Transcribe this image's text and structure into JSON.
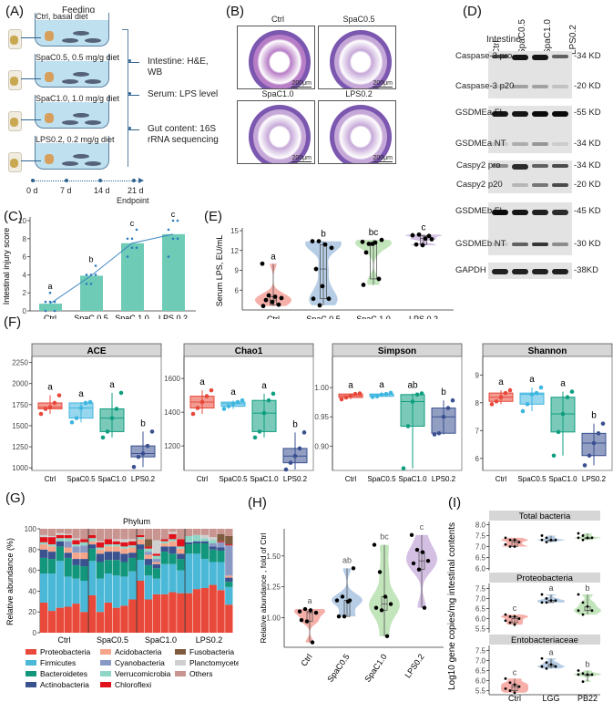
{
  "panels": {
    "A": {
      "label": "(A)",
      "title": "Feeding",
      "groups": [
        "Ctrl, basal diet",
        "SpaC0.5, 0.5 mg/g diet",
        "SpaC1.0, 1.0 mg/g diet",
        "LPS0.2, 0.2 mg/g diet"
      ],
      "outputs": [
        "Intestine: H&E, WB",
        "Serum: LPS level",
        "Gut content: 16S rRNA sequencing"
      ],
      "timeline": [
        "0 d",
        "7 d",
        "14 d",
        "21 d"
      ],
      "endpoint": "Endpoint"
    },
    "B": {
      "label": "(B)",
      "images": [
        "Ctrl",
        "SpaC0.5",
        "SpaC1.0",
        "LPS0.2"
      ],
      "scalebar": "200μm"
    },
    "D": {
      "label": "(D)",
      "tissue": "Intestine",
      "lanes": [
        "Ctrl",
        "SpaC0.5",
        "SpaC1.0",
        "LPS0.2"
      ],
      "bands": [
        {
          "name": "Caspase-3 pro",
          "kd": "-34 KD"
        },
        {
          "name": "Caspase-3 p20",
          "kd": "-20 KD"
        },
        {
          "name": "GSDMEa FL",
          "kd": "-55 KD"
        },
        {
          "name": "GSDMEa NT",
          "kd": "-34 KD"
        },
        {
          "name": "Caspy2 pro",
          "kd": "-34 KD"
        },
        {
          "name": "Caspy2 p20",
          "kd": "-20 KD"
        },
        {
          "name": "GSDMEb FL",
          "kd": "-45 KD"
        },
        {
          "name": "GSDMEb NT",
          "kd": "-30 KD"
        },
        {
          "name": "GAPDH",
          "kd": "-38KD"
        }
      ]
    },
    "C": {
      "label": "(C)"
    },
    "E": {
      "label": "(E)"
    },
    "F": {
      "label": "(F)"
    },
    "G": {
      "label": "(G)"
    },
    "H": {
      "label": "(H)"
    },
    "I": {
      "label": "(I)"
    }
  },
  "chart_data": [
    {
      "id": "C",
      "type": "bar",
      "ylabel": "Intestinal injury score",
      "categories": [
        "Ctrl",
        "SpaC 0.5",
        "SpaC 1.0",
        "LPS 0.2"
      ],
      "values": [
        0.8,
        3.9,
        7.5,
        8.5
      ],
      "letters": [
        "a",
        "b",
        "c",
        "c"
      ],
      "points": [
        [
          0,
          1,
          1,
          1,
          2,
          0
        ],
        [
          3,
          3,
          4,
          4,
          4,
          5
        ],
        [
          6,
          7,
          7,
          8,
          8,
          9
        ],
        [
          6,
          8,
          8,
          9,
          10,
          10
        ]
      ],
      "ylim": [
        0,
        10
      ],
      "yticks": [
        0,
        2,
        4,
        6,
        8,
        10
      ],
      "color": "#6ecbb6"
    },
    {
      "id": "E",
      "type": "violin",
      "ylabel": "Serum LPS, EU/mL",
      "categories": [
        "Ctrl",
        "SpaC 0.5",
        "SpaC 1.0",
        "LPS 0.2"
      ],
      "letters": [
        "a",
        "b",
        "bc",
        "c"
      ],
      "medians": [
        4.5,
        9.7,
        12.9,
        13.8
      ],
      "points": [
        [
          10,
          5.2,
          5.0,
          4.8,
          4.5,
          4.2,
          3.8,
          3.6
        ],
        [
          13.4,
          13.4,
          12.9,
          12.4,
          9.2,
          6.6,
          4.7,
          4.7,
          3.7
        ],
        [
          13.3,
          13.0,
          13.2,
          13.6,
          11.7,
          13.0,
          7.7,
          6.8
        ],
        [
          14.3,
          14.4,
          13.8,
          13.7,
          12.9,
          12.8,
          14.2
        ]
      ],
      "ylim": [
        3,
        15
      ],
      "yticks": [
        6,
        9,
        12,
        15
      ],
      "colors": [
        "#f4a19a",
        "#a9c4e0",
        "#b9e0b0",
        "#cdb5de"
      ]
    },
    {
      "id": "F",
      "type": "box",
      "categories": [
        "Ctrl",
        "SpaC0.5",
        "SpaC1.0",
        "LPS0.2"
      ],
      "colors": [
        "#e8483a",
        "#3fb6e0",
        "#0f9e80",
        "#3a5090"
      ],
      "facets": [
        {
          "title": "ACE",
          "ylim": [
            980,
            2300
          ],
          "yticks": [
            1000,
            1250,
            1500,
            1750,
            2000,
            2250
          ],
          "letters": [
            "a",
            "a",
            "a",
            "b"
          ],
          "boxes": [
            [
              1640,
              1700,
              1720,
              1770,
              1860
            ],
            [
              1540,
              1590,
              1710,
              1770,
              1780
            ],
            [
              1360,
              1430,
              1590,
              1700,
              1890
            ],
            [
              1010,
              1130,
              1170,
              1260,
              1430
            ]
          ]
        },
        {
          "title": "Chao1",
          "ylim": [
            1060,
            1720
          ],
          "yticks": [
            1200,
            1400,
            1600
          ],
          "letters": [
            "a",
            "a",
            "a",
            "b"
          ],
          "boxes": [
            [
              1390,
              1425,
              1460,
              1495,
              1530
            ],
            [
              1420,
              1435,
              1450,
              1460,
              1470
            ],
            [
              1250,
              1285,
              1395,
              1470,
              1510
            ],
            [
              1060,
              1100,
              1140,
              1185,
              1280
            ]
          ]
        },
        {
          "title": "Simpson",
          "ylim": [
            0.86,
            1.05
          ],
          "yticks": [
            0.9,
            0.95,
            1.0
          ],
          "letters": [
            "a",
            "a",
            "ab",
            "b"
          ],
          "boxes": [
            [
              0.98,
              0.983,
              0.986,
              0.989,
              0.99
            ],
            [
              0.984,
              0.985,
              0.988,
              0.989,
              0.991
            ],
            [
              0.862,
              0.934,
              0.976,
              0.988,
              0.99
            ],
            [
              0.92,
              0.922,
              0.95,
              0.965,
              0.978
            ]
          ]
        },
        {
          "title": "Shannon",
          "ylim": [
            5.6,
            9.6
          ],
          "yticks": [
            6,
            7,
            8,
            9
          ],
          "letters": [
            "a",
            "a",
            "a",
            "b"
          ],
          "boxes": [
            [
              7.95,
              8.05,
              8.2,
              8.35,
              8.45
            ],
            [
              7.7,
              7.95,
              8.3,
              8.35,
              8.55
            ],
            [
              6.1,
              6.95,
              7.6,
              8.2,
              8.4
            ],
            [
              5.75,
              6.1,
              6.55,
              6.9,
              7.25
            ]
          ]
        }
      ]
    },
    {
      "id": "G",
      "type": "stacked_bar",
      "title": "Phylum",
      "ylabel": "Relative abundance (%)",
      "groups": [
        "Ctrl",
        "SpaC0.5",
        "SpaC1.0",
        "LPS0.2"
      ],
      "yticks": [
        0,
        20,
        40,
        60,
        80,
        100
      ],
      "ylim": [
        0,
        100
      ],
      "legend": [
        {
          "name": "Proteobacteria",
          "color": "#e8493a"
        },
        {
          "name": "Firmicutes",
          "color": "#4bb8d8"
        },
        {
          "name": "Bacteroidetes",
          "color": "#13977c"
        },
        {
          "name": "Actinobacteria",
          "color": "#3a5290"
        },
        {
          "name": "Acidobacteria",
          "color": "#f4a58a"
        },
        {
          "name": "Cyanobacteria",
          "color": "#8a99c4"
        },
        {
          "name": "Verrucomicrobia",
          "color": "#8fd6c6"
        },
        {
          "name": "Chloroflexi",
          "color": "#e0121b"
        },
        {
          "name": "Fusobacteria",
          "color": "#7e5a3e"
        },
        {
          "name": "Planctomycetes",
          "color": "#cfcfcf"
        },
        {
          "name": "Others",
          "color": "#c99590"
        }
      ],
      "samples": [
        [
          29,
          28,
          15,
          8,
          5,
          0,
          2,
          5,
          0,
          2,
          6
        ],
        [
          21,
          36,
          14,
          7,
          5,
          0,
          2,
          7,
          0,
          1,
          7
        ],
        [
          24,
          45,
          14,
          5,
          0,
          0,
          3,
          3,
          0,
          2,
          4
        ],
        [
          25,
          29,
          18,
          5,
          5,
          6,
          3,
          3,
          0,
          1,
          5
        ],
        [
          28,
          24,
          13,
          6,
          6,
          6,
          2,
          4,
          0,
          2,
          9
        ],
        [
          20,
          30,
          14,
          7,
          6,
          7,
          3,
          3,
          0,
          0,
          10
        ],
        [
          36,
          33,
          12,
          4,
          3,
          0,
          3,
          3,
          0,
          0,
          6
        ],
        [
          20,
          32,
          16,
          8,
          4,
          0,
          2,
          5,
          0,
          1,
          12
        ],
        [
          29,
          28,
          13,
          8,
          5,
          0,
          2,
          5,
          0,
          0,
          10
        ],
        [
          24,
          31,
          15,
          8,
          5,
          0,
          2,
          3,
          0,
          2,
          10
        ],
        [
          26,
          28,
          14,
          8,
          5,
          0,
          2,
          4,
          0,
          3,
          10
        ],
        [
          32,
          27,
          13,
          5,
          5,
          0,
          2,
          4,
          0,
          2,
          10
        ],
        [
          50,
          20,
          10,
          5,
          5,
          0,
          2,
          2,
          0,
          0,
          6
        ],
        [
          32,
          23,
          10,
          6,
          4,
          3,
          3,
          2,
          7,
          0,
          10
        ],
        [
          37,
          15,
          10,
          4,
          2,
          3,
          3,
          2,
          0,
          13,
          11
        ],
        [
          37,
          29,
          12,
          5,
          3,
          0,
          2,
          2,
          0,
          0,
          10
        ],
        [
          39,
          27,
          10,
          7,
          5,
          0,
          2,
          5,
          0,
          2,
          3
        ],
        [
          38,
          22,
          11,
          5,
          5,
          0,
          2,
          7,
          0,
          0,
          10
        ],
        [
          38,
          38,
          9,
          2,
          0,
          0,
          6,
          0,
          0,
          0,
          7
        ],
        [
          42,
          34,
          10,
          2,
          0,
          0,
          6,
          0,
          0,
          0,
          6
        ],
        [
          43,
          28,
          15,
          2,
          0,
          0,
          3,
          0,
          0,
          3,
          6
        ],
        [
          46,
          22,
          12,
          3,
          0,
          3,
          3,
          0,
          0,
          3,
          8
        ],
        [
          41,
          27,
          11,
          3,
          0,
          5,
          0,
          1,
          7,
          0,
          5
        ],
        [
          27,
          17,
          5,
          4,
          2,
          29,
          0,
          1,
          8,
          0,
          7
        ]
      ]
    },
    {
      "id": "H",
      "type": "violin",
      "ylabel": "Relative abundance , fold of Ctrl",
      "categories": [
        "Ctrl",
        "SpaC0.5",
        "SpaC1.0",
        "LPS0.2"
      ],
      "letters": [
        "a",
        "ab",
        "bc",
        "c"
      ],
      "medians": [
        1.03,
        1.13,
        1.1,
        1.49
      ],
      "points": [
        [
          1.05,
          1.07,
          1.06,
          1.04,
          0.98,
          0.97,
          0.8
        ],
        [
          1.14,
          1.17,
          1.13,
          1.4,
          1.01,
          1.01,
          1.14
        ],
        [
          1.59,
          1.37,
          1.17,
          1.11,
          1.08,
          1.06,
          0.85
        ],
        [
          1.67,
          1.55,
          1.53,
          1.46,
          1.44,
          1.39,
          1.08
        ]
      ],
      "ylim": [
        0.76,
        1.72
      ],
      "yticks": [
        1.0,
        1.25,
        1.5
      ]
    },
    {
      "id": "I",
      "type": "violin",
      "ylabel": "Log10 gene copies/mg intestinal contents",
      "categories": [
        "Ctrl",
        "LGG",
        "PB22"
      ],
      "colors": [
        "#f4a19a",
        "#a9c4e0",
        "#b9e0b0"
      ],
      "facets": [
        {
          "title": "Total bacteria",
          "letters": [
            "",
            "",
            ""
          ],
          "ylim": [
            5.9,
            8.1
          ],
          "yticks": [
            6.0,
            6.5,
            7.0,
            7.5,
            8.0
          ],
          "points": [
            [
              7.4,
              7.3,
              7.3,
              7.2,
              7.1,
              7.0,
              7.0
            ],
            [
              7.5,
              7.4,
              7.3,
              7.3,
              7.3,
              7.2
            ],
            [
              7.6,
              7.5,
              7.4,
              7.4,
              7.4,
              7.3
            ]
          ],
          "medians": [
            7.2,
            7.35,
            7.4
          ]
        },
        {
          "title": "Proteobacteria",
          "letters": [
            "c",
            "a",
            "b"
          ],
          "ylim": [
            5.3,
            7.7
          ],
          "yticks": [
            5.5,
            6.0,
            6.5,
            7.0,
            7.5
          ],
          "points": [
            [
              6.2,
              6.1,
              6.1,
              6.0,
              5.9,
              5.8,
              5.7
            ],
            [
              7.2,
              7.0,
              6.9,
              6.9,
              6.8,
              6.8
            ],
            [
              7.2,
              6.8,
              6.6,
              6.4,
              6.4,
              6.2
            ]
          ],
          "medians": [
            6.0,
            6.95,
            6.55
          ]
        },
        {
          "title": "Entobacteriaceae",
          "letters": [
            "c",
            "a",
            "b"
          ],
          "ylim": [
            5.3,
            7.7
          ],
          "yticks": [
            5.5,
            6.0,
            6.5,
            7.0,
            7.5
          ],
          "points": [
            [
              6.1,
              5.9,
              5.8,
              5.7,
              5.6,
              5.5,
              5.4
            ],
            [
              7.1,
              6.9,
              6.8,
              6.7,
              6.7,
              6.6
            ],
            [
              6.5,
              6.35,
              6.3,
              6.3,
              6.3,
              5.95
            ]
          ],
          "medians": [
            5.7,
            6.8,
            6.3
          ]
        }
      ]
    }
  ]
}
